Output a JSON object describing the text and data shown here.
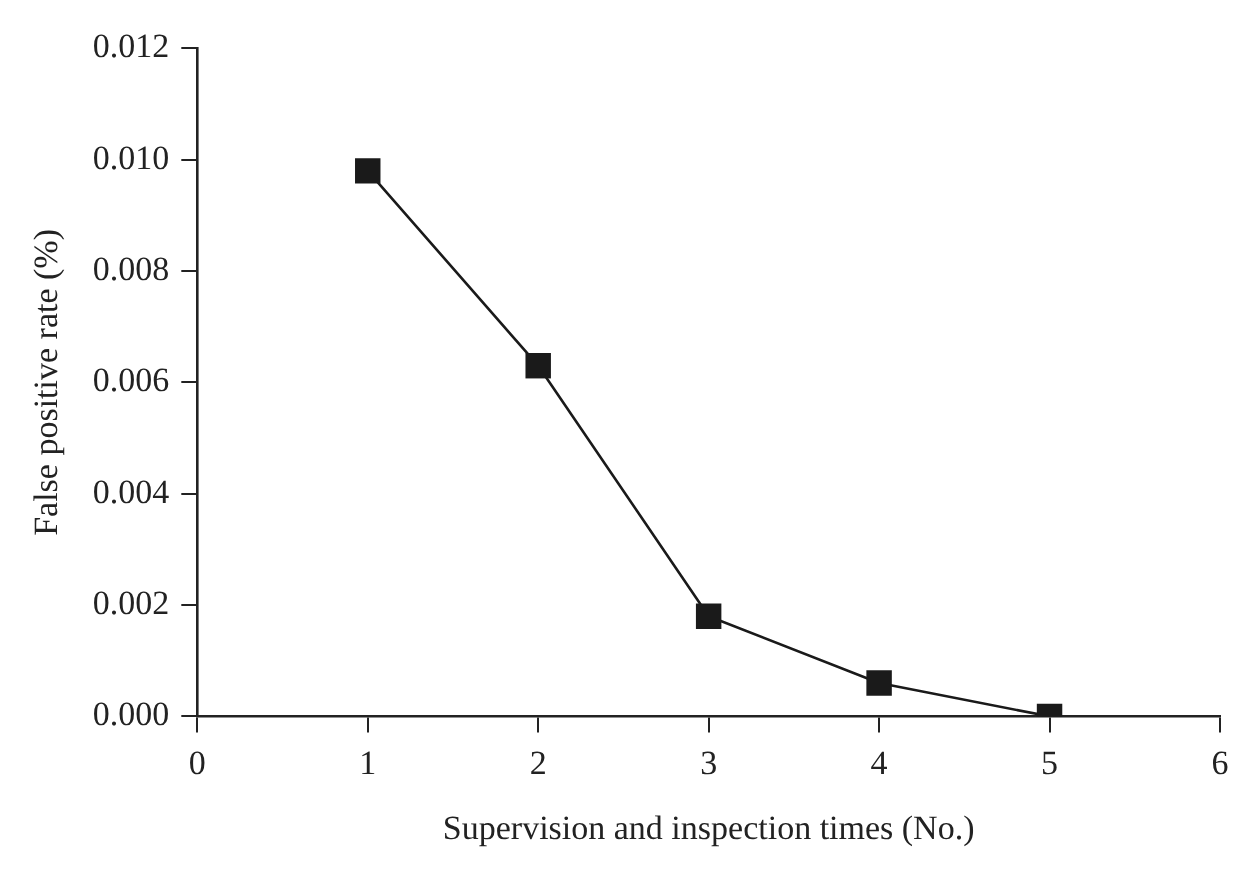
{
  "chart_data": {
    "type": "line",
    "xlabel": "Supervision and inspection times (No.)",
    "ylabel": "False positive rate (%)",
    "x": [
      1,
      2,
      3,
      4,
      5
    ],
    "series": [
      {
        "color": "#1a1a1a",
        "values": [
          0.0098,
          0.0063,
          0.0018,
          0.0006,
          0.0
        ]
      }
    ],
    "xlim": [
      0,
      6
    ],
    "xticks": [
      0,
      1,
      2,
      3,
      4,
      5,
      6
    ],
    "ylim": [
      0,
      0.012
    ],
    "yticks": [
      {
        "value": 0,
        "label": "0.000"
      },
      {
        "value": 0.002,
        "label": "0.002"
      },
      {
        "value": 0.004,
        "label": "0.004"
      },
      {
        "value": 0.006,
        "label": "0.006"
      },
      {
        "value": 0.008,
        "label": "0.008"
      },
      {
        "value": 0.01,
        "label": "0.010"
      },
      {
        "value": 0.012,
        "label": "0.012"
      }
    ],
    "grid": false,
    "legend": false,
    "marker": "square",
    "line_style": "solid"
  }
}
